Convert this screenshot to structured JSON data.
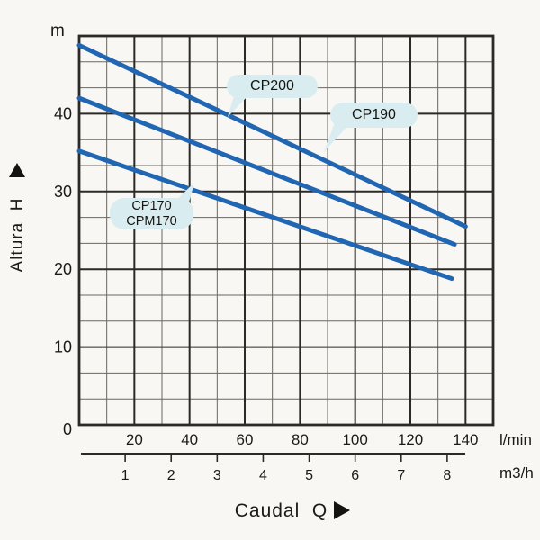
{
  "chart_data": {
    "type": "line",
    "title": "",
    "xlabel": "Caudal  Q",
    "ylabel": "Altura  H",
    "y_unit": "m",
    "x_unit_primary": "l/min",
    "x_unit_secondary": "m3/h",
    "xlim_lmin": [
      0,
      150
    ],
    "ylim_m": [
      0,
      50
    ],
    "x_ticks_lmin": [
      20,
      40,
      60,
      80,
      100,
      120,
      140
    ],
    "x_ticks_m3h": [
      1,
      2,
      3,
      4,
      5,
      6,
      7,
      8
    ],
    "y_ticks_m": [
      0,
      10,
      20,
      30,
      40
    ],
    "grid": {
      "x_minor_step": 10,
      "x_major_step": 20,
      "y_major_step": 10,
      "y_minor_per_major": 3
    },
    "legend_position": "inline-callouts",
    "series": [
      {
        "name": "CP200",
        "points_lmin_m": [
          [
            0,
            48.8
          ],
          [
            140,
            25.5
          ]
        ]
      },
      {
        "name": "CP190",
        "points_lmin_m": [
          [
            0,
            42.0
          ],
          [
            136,
            23.2
          ]
        ]
      },
      {
        "name": "CP170 CPM170",
        "points_lmin_m": [
          [
            0,
            35.2
          ],
          [
            135,
            18.8
          ]
        ]
      }
    ],
    "colors": {
      "curve": "#2066b2",
      "label_bg": "#d9edf0",
      "grid_major": "#2b2a26",
      "grid_minor": "#6a675f",
      "text": "#1b1a18",
      "paper": "#f8f7f3"
    }
  },
  "labels": {
    "y_unit": "m",
    "y_axis": "Altura  H",
    "x_axis": "Caudal  Q",
    "x_unit_primary": "l/min",
    "x_unit_secondary": "m3/h",
    "cp200": "CP200",
    "cp190": "CP190",
    "cp170_line1": "CP170",
    "cp170_line2": "CPM170"
  }
}
